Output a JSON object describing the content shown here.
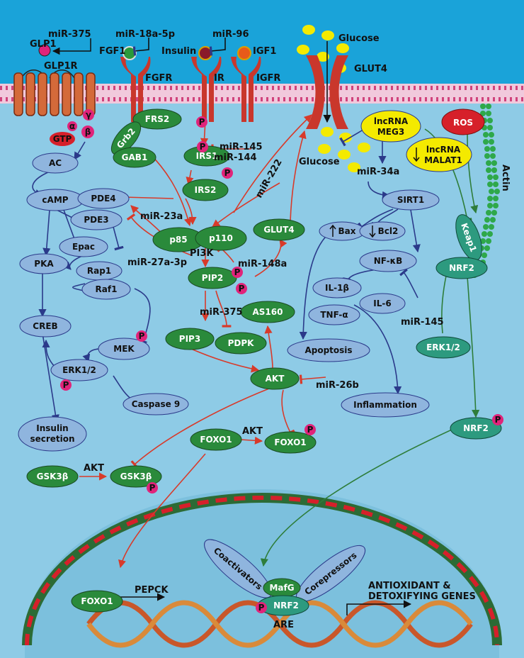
{
  "colors": {
    "cytoplasm": "#8ecbe6",
    "extracellular": "#1aa3d9",
    "green_node": "#2a8a3b",
    "blue_node": "#8fb5de",
    "teal_node": "#2d9a7f",
    "red_arrow": "#d83a2a",
    "blue_arrow": "#2b3a8a",
    "green_arrow": "#2e7d3a",
    "phospho": "#e0247a",
    "nucleus": "#7cc0dd",
    "nucleus_border": "#2c6b35",
    "glucose": "#f4ea00"
  },
  "labels": {
    "mir375_top": "miR-375",
    "glp1": "GLP1",
    "glp1r": "GLP1R",
    "mir18a": "miR-18a-5p",
    "fgf1": "FGF1",
    "fgfr": "FGFR",
    "mir96": "miR-96",
    "insulin": "Insulin",
    "ir": "IR",
    "igf1": "IGF1",
    "igfr": "IGFR",
    "glucose_top": "Glucose",
    "glut4_membrane": "GLUT4",
    "glucose_bottom": "Glucose",
    "actin": "Actin",
    "gamma": "γ",
    "alpha": "α",
    "beta": "β",
    "gtp": "GTP",
    "p": "P",
    "mir145_irs": "miR-145",
    "mir144": "miR-144",
    "mir222": "miR-222",
    "mir34a": "miR-34a",
    "mir23a": "miR-23a",
    "pi3k": "PI3K",
    "mir148a": "miR-148a",
    "mir27a": "miR-27a-3p",
    "mir375_pip": "miR-375",
    "mir145_il6": "miR-145",
    "mir26b": "miR-26b",
    "akt_foxo": "AKT",
    "akt_gsk": "AKT",
    "pepck": "PEPCK",
    "are": "ARE",
    "antioxidant_1": "ANTIOXIDANT &",
    "antioxidant_2": "DETOXIFYING GENES"
  },
  "nodes": {
    "frs2": "FRS2",
    "grb2": "Grb2",
    "gab1": "GAB1",
    "irs1": "IRS1",
    "irs2": "IRS2",
    "ac": "AC",
    "camp": "cAMP",
    "pde4": "PDE4",
    "pde3": "PDE3",
    "epac": "Epac",
    "pka": "PKA",
    "rap1": "Rap1",
    "raf1": "Raf1",
    "mek": "MEK",
    "creb": "CREB",
    "erk12_left": "ERK1/2",
    "caspase9": "Caspase 9",
    "insulin_secretion_1": "Insulin",
    "insulin_secretion_2": "secretion",
    "p85": "p85",
    "p110": "p110",
    "glut4_cyto": "GLUT4",
    "pip2": "PIP2",
    "pip3": "PIP3",
    "pdpk": "PDPK",
    "as160": "AS160",
    "akt": "AKT",
    "foxo1_a": "FOXO1",
    "foxo1_b": "FOXO1",
    "gsk3b_a": "GSK3β",
    "gsk3b_b": "GSK3β",
    "lncrna_meg3_1": "lncRNA",
    "lncrna_meg3_2": "MEG3",
    "sirt1": "SIRT1",
    "bax": "Bax",
    "bcl2": "Bcl2",
    "nfkb": "NF-κB",
    "il1b": "IL-1β",
    "il6": "IL-6",
    "tnfa": "TNF-α",
    "apoptosis": "Apoptosis",
    "inflammation": "Inflammation",
    "ros": "ROS",
    "lncrna_malat1_1": "lncRNA",
    "lncrna_malat1_2": "MALAT1",
    "keap1": "Keap1",
    "nrf2_a": "NRF2",
    "erk12_right": "ERK1/2",
    "nrf2_b": "NRF2",
    "foxo1_nuc": "FOXO1",
    "coactivators": "Coactivators",
    "corepressors": "Corepressors",
    "mafg": "MafG",
    "nrf2_nuc": "NRF2"
  }
}
